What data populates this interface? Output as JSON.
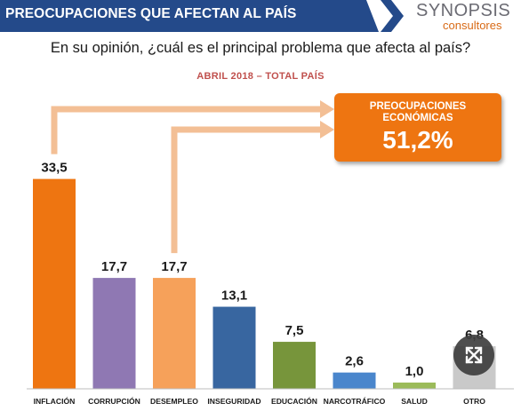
{
  "header": {
    "title": "PREOCUPACIONES QUE AFECTAN AL PAÍS",
    "logo_name": "SYNOPSIS",
    "logo_sub": "consultores"
  },
  "question": "En su opinión, ¿cuál es el principal problema que afecta al país?",
  "subtitle": "ABRIL 2018 – TOTAL PAÍS",
  "callout": {
    "label_line1": "PREOCUPACIONES",
    "label_line2": "ECONÓMICAS",
    "value": "51,2%"
  },
  "overlay": {
    "icon": "expand-arrows-icon"
  },
  "colors": {
    "header_band": "#244a8a",
    "arrow": "#f3bf95",
    "callout": "#ee7511"
  },
  "chart_data": {
    "type": "bar",
    "categories": [
      "INFLACIÓN",
      "CORRUPCIÓN",
      "DESEMPLEO",
      "INSEGURIDAD",
      "EDUCACIÓN",
      "NARCOTRÁFICO",
      "SALUD",
      "OTRO"
    ],
    "values": [
      33.5,
      17.7,
      17.7,
      13.1,
      7.5,
      2.6,
      1.0,
      6.8
    ],
    "labels": [
      "33,5",
      "17,7",
      "17,7",
      "13,1",
      "7,5",
      "2,6",
      "1,0",
      "6,8"
    ],
    "colors": [
      "#ee7511",
      "#8f78b3",
      "#f6a15a",
      "#3866a0",
      "#77953b",
      "#4a86cc",
      "#9bbb59",
      "#c9c9c9"
    ],
    "ylim": [
      0,
      35
    ],
    "grid": false,
    "legend": "none"
  }
}
